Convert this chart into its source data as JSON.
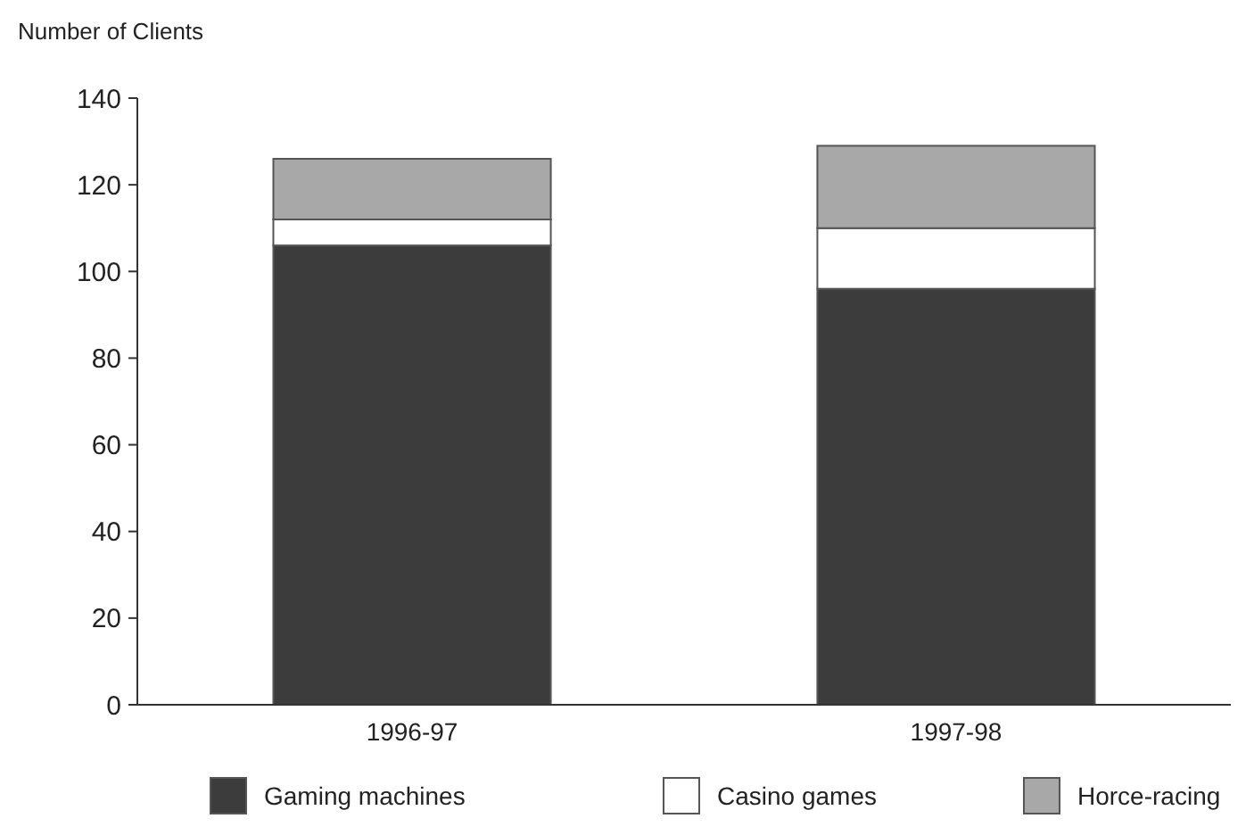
{
  "chart_data": {
    "type": "bar",
    "ylabel": "Number of Clients",
    "categories": [
      "1996-97",
      "1997-98"
    ],
    "stacked": true,
    "series": [
      {
        "name": "Gaming machines",
        "color": "#3c3c3c",
        "values": [
          106,
          96
        ]
      },
      {
        "name": "Casino games",
        "color": "#ffffff",
        "values": [
          6,
          14
        ]
      },
      {
        "name": "Horce-racing",
        "color": "#a8a8a8",
        "values": [
          14,
          19
        ]
      }
    ],
    "ylim": [
      0,
      140
    ],
    "yticks": [
      0,
      20,
      40,
      60,
      80,
      100,
      120,
      140
    ],
    "grid": false,
    "legend": "bottom"
  }
}
